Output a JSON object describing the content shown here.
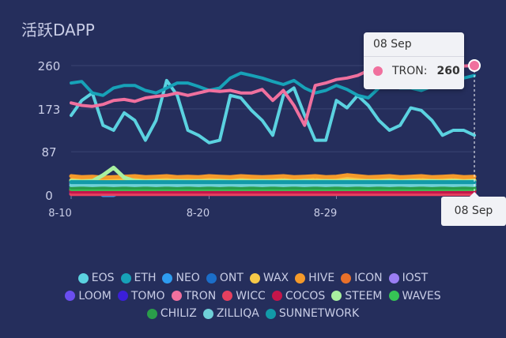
{
  "title": "活跃DAPP",
  "chart_data": {
    "type": "line",
    "xlabel": "",
    "ylabel": "",
    "ylim": [
      0,
      260
    ],
    "y_ticks": [
      "260",
      "173",
      "87",
      "0"
    ],
    "x_ticks": [
      "8-10",
      "8-20",
      "8-29",
      "08 Sep"
    ],
    "grid": true,
    "legend_position": "bottom",
    "series": [
      {
        "name": "EOS",
        "color": "#5bd2e0",
        "values": [
          160,
          190,
          205,
          140,
          130,
          165,
          150,
          110,
          150,
          230,
          200,
          130,
          120,
          105,
          110,
          200,
          195,
          170,
          150,
          120,
          200,
          215,
          160,
          110,
          110,
          190,
          175,
          200,
          180,
          150,
          130,
          140,
          175,
          170,
          150,
          120,
          130,
          130,
          120
        ]
      },
      {
        "name": "ETH",
        "color": "#17a2b8",
        "values": [
          225,
          228,
          205,
          200,
          215,
          220,
          220,
          210,
          205,
          215,
          225,
          225,
          218,
          210,
          215,
          235,
          245,
          240,
          235,
          228,
          222,
          230,
          215,
          205,
          210,
          220,
          212,
          200,
          195,
          215,
          220,
          215,
          215,
          210,
          218,
          225,
          230,
          235,
          240
        ]
      },
      {
        "name": "NEO",
        "color": "#2e9cf0",
        "values": [
          15,
          10,
          14,
          0,
          0,
          10,
          12,
          10,
          12,
          11,
          13,
          12,
          14,
          12,
          12,
          13,
          12,
          12,
          13,
          12,
          12,
          14,
          13,
          12,
          12,
          14,
          13,
          12,
          12,
          13,
          12,
          13,
          12,
          12,
          13,
          12,
          13,
          12,
          12
        ]
      },
      {
        "name": "ONT",
        "color": "#1b6ec9",
        "values": [
          18,
          18,
          17,
          17,
          18,
          18,
          17,
          17,
          18,
          18,
          18,
          17,
          17,
          18,
          18,
          17,
          18,
          17,
          17,
          18,
          18,
          17,
          18,
          18,
          17,
          18,
          17,
          17,
          18,
          18,
          17,
          18,
          18,
          17,
          18,
          17,
          18,
          18,
          17
        ]
      },
      {
        "name": "WAX",
        "color": "#f7c948",
        "values": [
          30,
          32,
          31,
          30,
          29,
          31,
          33,
          32,
          30,
          31,
          30,
          32,
          31,
          31,
          30,
          33,
          32,
          31,
          30,
          31,
          30,
          32,
          31,
          30,
          31,
          32,
          33,
          31,
          30,
          31,
          32,
          30,
          31,
          30,
          32,
          31,
          30,
          31,
          30
        ]
      },
      {
        "name": "HIVE",
        "color": "#f59a2a",
        "values": [
          38,
          36,
          37,
          35,
          36,
          37,
          38,
          36,
          37,
          38,
          36,
          37,
          36,
          38,
          37,
          36,
          38,
          37,
          36,
          37,
          38,
          36,
          37,
          38,
          36,
          37,
          40,
          38,
          36,
          37,
          38,
          36,
          37,
          38,
          36,
          37,
          38,
          36,
          37
        ]
      },
      {
        "name": "ICON",
        "color": "#e8702a",
        "values": [
          10,
          10,
          10,
          10,
          10,
          10,
          10,
          10,
          10,
          10,
          10,
          10,
          10,
          10,
          10,
          10,
          10,
          10,
          10,
          10,
          10,
          10,
          10,
          10,
          10,
          10,
          10,
          10,
          10,
          10,
          10,
          10,
          10,
          10,
          10,
          10,
          10,
          10,
          10
        ]
      },
      {
        "name": "IOST",
        "color": "#9b7ef5",
        "values": [
          24,
          24,
          23,
          24,
          24,
          23,
          24,
          24,
          23,
          24,
          24,
          24,
          23,
          24,
          24,
          23,
          24,
          24,
          24,
          23,
          24,
          24,
          23,
          24,
          24,
          24,
          23,
          24,
          24,
          23,
          24,
          24,
          24,
          23,
          24,
          24,
          23,
          24,
          24
        ]
      },
      {
        "name": "LOOM",
        "color": "#6a4ef0",
        "values": [
          3,
          3,
          3,
          3,
          3,
          3,
          3,
          3,
          3,
          3,
          3,
          3,
          3,
          3,
          3,
          3,
          3,
          3,
          3,
          3,
          3,
          3,
          3,
          3,
          3,
          3,
          3,
          3,
          3,
          3,
          3,
          3,
          3,
          3,
          3,
          3,
          3,
          3,
          3
        ]
      },
      {
        "name": "TOMO",
        "color": "#3b1fd9",
        "values": [
          5,
          5,
          5,
          5,
          5,
          5,
          5,
          5,
          5,
          5,
          5,
          5,
          5,
          5,
          5,
          5,
          5,
          5,
          5,
          5,
          5,
          5,
          5,
          5,
          5,
          5,
          5,
          5,
          5,
          5,
          5,
          5,
          5,
          5,
          5,
          5,
          5,
          5,
          5
        ]
      },
      {
        "name": "TRON",
        "color": "#f0709e",
        "values": [
          185,
          180,
          178,
          182,
          190,
          192,
          188,
          195,
          198,
          200,
          205,
          200,
          205,
          210,
          208,
          210,
          205,
          205,
          212,
          190,
          210,
          180,
          140,
          220,
          225,
          232,
          235,
          240,
          250,
          255,
          258,
          256,
          258,
          255,
          256,
          257,
          258,
          259,
          260
        ]
      },
      {
        "name": "WICC",
        "color": "#e6405f",
        "values": [
          2,
          2,
          2,
          2,
          2,
          2,
          2,
          2,
          2,
          2,
          2,
          2,
          2,
          2,
          2,
          2,
          2,
          2,
          2,
          2,
          2,
          2,
          2,
          2,
          2,
          2,
          2,
          2,
          2,
          2,
          2,
          2,
          2,
          2,
          2,
          2,
          2,
          2,
          2
        ]
      },
      {
        "name": "COCOS",
        "color": "#c4154a",
        "values": [
          7,
          7,
          7,
          7,
          7,
          7,
          7,
          7,
          7,
          7,
          7,
          7,
          7,
          7,
          7,
          7,
          7,
          7,
          7,
          7,
          7,
          7,
          7,
          7,
          7,
          7,
          7,
          7,
          7,
          7,
          7,
          7,
          7,
          7,
          7,
          7,
          7,
          7,
          7
        ]
      },
      {
        "name": "STEEM",
        "color": "#a8f0a0",
        "values": [
          28,
          27,
          28,
          40,
          55,
          35,
          28,
          27,
          28,
          27,
          28,
          27,
          28,
          27,
          28,
          27,
          28,
          27,
          28,
          27,
          28,
          27,
          28,
          27,
          28,
          27,
          28,
          27,
          28,
          27,
          28,
          27,
          28,
          27,
          28,
          27,
          28,
          27,
          28
        ]
      },
      {
        "name": "WAVES",
        "color": "#36c455",
        "values": [
          12,
          12,
          12,
          12,
          12,
          12,
          12,
          12,
          12,
          12,
          12,
          12,
          12,
          12,
          12,
          12,
          12,
          12,
          12,
          12,
          12,
          12,
          12,
          12,
          12,
          12,
          12,
          12,
          12,
          12,
          12,
          12,
          12,
          12,
          12,
          12,
          12,
          12,
          12
        ]
      },
      {
        "name": "CHILIZ",
        "color": "#2a9d4a",
        "values": [
          15,
          15,
          15,
          15,
          15,
          15,
          15,
          15,
          15,
          15,
          15,
          15,
          15,
          15,
          15,
          15,
          15,
          15,
          15,
          15,
          15,
          15,
          15,
          15,
          15,
          15,
          15,
          15,
          15,
          15,
          15,
          15,
          15,
          15,
          15,
          15,
          15,
          15,
          15
        ]
      },
      {
        "name": "ZILLIQA",
        "color": "#6fd0d8",
        "values": [
          20,
          21,
          20,
          21,
          20,
          21,
          20,
          21,
          20,
          21,
          20,
          21,
          20,
          21,
          20,
          21,
          20,
          21,
          20,
          21,
          20,
          21,
          20,
          21,
          20,
          21,
          20,
          21,
          20,
          21,
          20,
          21,
          20,
          21,
          20,
          21,
          20,
          21,
          20
        ]
      },
      {
        "name": "SUNNETWORK",
        "color": "#129aa8",
        "values": [
          26,
          26,
          26,
          26,
          26,
          26,
          26,
          26,
          26,
          26,
          26,
          26,
          26,
          26,
          26,
          26,
          26,
          26,
          26,
          26,
          26,
          26,
          26,
          26,
          26,
          26,
          26,
          26,
          26,
          26,
          26,
          26,
          26,
          26,
          26,
          26,
          26,
          26,
          26
        ]
      }
    ],
    "tooltip": {
      "date": "08 Sep",
      "series": "TRON",
      "label": "TRON:",
      "value": "260",
      "color": "#f0709e"
    },
    "axis_pointer_label": "08 Sep"
  }
}
